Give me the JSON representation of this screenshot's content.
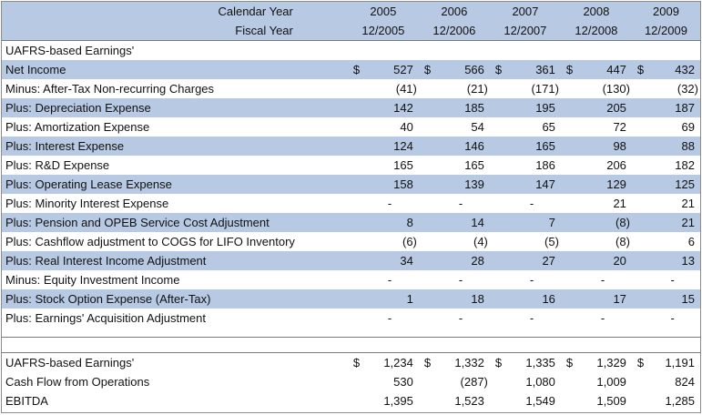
{
  "header": {
    "row1_label": "Calendar Year",
    "row2_label": "Fiscal Year",
    "years": [
      "2005",
      "2006",
      "2007",
      "2008",
      "2009"
    ],
    "fiscal": [
      "12/2005",
      "12/2006",
      "12/2007",
      "12/2008",
      "12/2009"
    ]
  },
  "section_title": "UAFRS-based Earnings'",
  "rows": [
    {
      "label": "Net Income",
      "dollar": true,
      "values": [
        "527",
        "566",
        "361",
        "447",
        "432"
      ],
      "shade": "blue"
    },
    {
      "label": "Minus: After-Tax Non-recurring Charges",
      "dollar": false,
      "values": [
        "(41)",
        "(21)",
        "(171)",
        "(130)",
        "(32)"
      ],
      "shade": "white"
    },
    {
      "label": "Plus: Depreciation Expense",
      "dollar": false,
      "values": [
        "142",
        "185",
        "195",
        "205",
        "187"
      ],
      "shade": "blue"
    },
    {
      "label": "Plus: Amortization Expense",
      "dollar": false,
      "values": [
        "40",
        "54",
        "65",
        "72",
        "69"
      ],
      "shade": "white"
    },
    {
      "label": "Plus: Interest Expense",
      "dollar": false,
      "values": [
        "124",
        "146",
        "165",
        "98",
        "88"
      ],
      "shade": "blue"
    },
    {
      "label": "Plus: R&D Expense",
      "dollar": false,
      "values": [
        "165",
        "165",
        "186",
        "206",
        "182"
      ],
      "shade": "white"
    },
    {
      "label": "Plus: Operating Lease Expense",
      "dollar": false,
      "values": [
        "158",
        "139",
        "147",
        "129",
        "125"
      ],
      "shade": "blue"
    },
    {
      "label": "Plus: Minority Interest Expense",
      "dollar": false,
      "values": [
        "-",
        "-",
        "-",
        "21",
        "21"
      ],
      "shade": "white"
    },
    {
      "label": "Plus: Pension and OPEB Service Cost Adjustment",
      "dollar": false,
      "values": [
        "8",
        "14",
        "7",
        "(8)",
        "21"
      ],
      "shade": "blue"
    },
    {
      "label": "Plus: Cashflow adjustment to COGS for LIFO Inventory",
      "dollar": false,
      "values": [
        "(6)",
        "(4)",
        "(5)",
        "(8)",
        "6"
      ],
      "shade": "white"
    },
    {
      "label": "Plus: Real Interest Income Adjustment",
      "dollar": false,
      "values": [
        "34",
        "28",
        "27",
        "20",
        "13"
      ],
      "shade": "blue"
    },
    {
      "label": "Minus: Equity Investment Income",
      "dollar": false,
      "values": [
        "-",
        "-",
        "-",
        "-",
        "-"
      ],
      "shade": "white"
    },
    {
      "label": "Plus: Stock Option Expense (After-Tax)",
      "dollar": false,
      "values": [
        "1",
        "18",
        "16",
        "17",
        "15"
      ],
      "shade": "blue"
    },
    {
      "label": "Plus: Earnings' Acquisition Adjustment",
      "dollar": false,
      "values": [
        "-",
        "-",
        "-",
        "-",
        "-"
      ],
      "shade": "white"
    }
  ],
  "summary": [
    {
      "label": "UAFRS-based Earnings'",
      "dollar": true,
      "values": [
        "1,234",
        "1,332",
        "1,335",
        "1,329",
        "1,191"
      ]
    },
    {
      "label": "Cash Flow from Operations",
      "dollar": false,
      "values": [
        "530",
        "(287)",
        "1,080",
        "1,009",
        "824"
      ]
    },
    {
      "label": "EBITDA",
      "dollar": false,
      "values": [
        "1,395",
        "1,523",
        "1,549",
        "1,509",
        "1,285"
      ]
    }
  ],
  "currency_symbol": "$"
}
